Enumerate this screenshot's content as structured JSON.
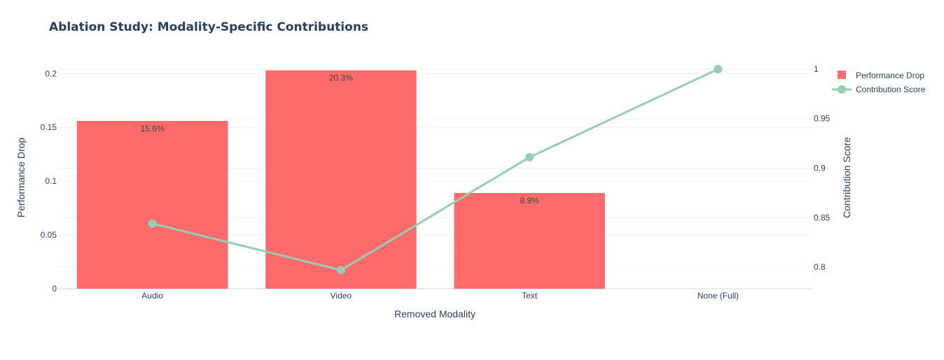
{
  "chart_data": {
    "type": "bar",
    "title": "Ablation Study: Modality-Specific Contributions",
    "xlabel": "Removed Modality",
    "categories": [
      "Audio",
      "Video",
      "Text",
      "None (Full)"
    ],
    "series": [
      {
        "name": "Performance Drop",
        "type": "bar",
        "axis": "left",
        "color": "#ff6b6b",
        "values": [
          0.156,
          0.203,
          0.089,
          0
        ],
        "labels": [
          "15.6%",
          "20.3%",
          "8.9%",
          ""
        ]
      },
      {
        "name": "Contribution Score",
        "type": "line",
        "axis": "right",
        "color": "#96cdb5",
        "values": [
          0.844,
          0.797,
          0.911,
          1.0
        ]
      }
    ],
    "y_left": {
      "label": "Performance Drop",
      "range": [
        0,
        0.2132
      ],
      "ticks": [
        0,
        0.05,
        0.1,
        0.15,
        0.2
      ],
      "tick_labels": [
        "0",
        "0.05",
        "0.1",
        "0.15",
        "0.2"
      ]
    },
    "y_right": {
      "label": "Contribution Score",
      "range": [
        0.7782,
        1.0098
      ],
      "ticks": [
        0.8,
        0.85,
        0.9,
        0.95,
        1
      ],
      "tick_labels": [
        "0.8",
        "0.85",
        "0.9",
        "0.95",
        "1"
      ]
    },
    "grid": true,
    "legend_position": "top-right"
  }
}
